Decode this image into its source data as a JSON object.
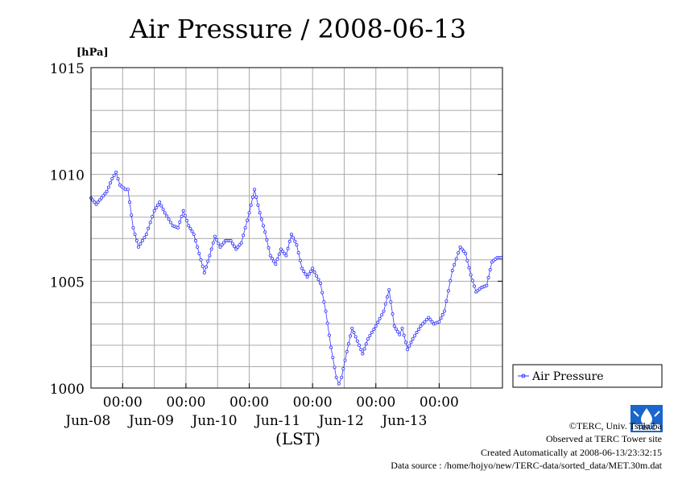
{
  "chart_data": {
    "type": "line",
    "title": "Air Pressure / 2008-06-13",
    "ylabel": "[hPa]",
    "xlabel": "(LST)",
    "ylim": [
      1000,
      1015
    ],
    "xlim": [
      "2008-06-07 12:00",
      "2008-06-13 24:00"
    ],
    "yticks": [
      1000,
      1005,
      1010,
      1015
    ],
    "grid": true,
    "legend_position": "right",
    "x_tick_labels": [
      {
        "time": "00:00",
        "day": "Jun-08"
      },
      {
        "time": "00:00",
        "day": "Jun-09"
      },
      {
        "time": "00:00",
        "day": "Jun-10"
      },
      {
        "time": "00:00",
        "day": "Jun-11"
      },
      {
        "time": "00:00",
        "day": "Jun-12"
      },
      {
        "time": "00:00",
        "day": "Jun-13"
      }
    ],
    "series": [
      {
        "name": "Air Pressure",
        "color": "#3333ff",
        "points": [
          [
            "2008-06-07 12:00",
            1008.9
          ],
          [
            "2008-06-07 14:00",
            1008.6
          ],
          [
            "2008-06-07 16:00",
            1008.9
          ],
          [
            "2008-06-07 18:00",
            1009.2
          ],
          [
            "2008-06-07 20:00",
            1009.8
          ],
          [
            "2008-06-07 21:30",
            1010.1
          ],
          [
            "2008-06-07 23:00",
            1009.5
          ],
          [
            "2008-06-08 01:00",
            1009.3
          ],
          [
            "2008-06-08 02:00",
            1009.3
          ],
          [
            "2008-06-08 04:00",
            1007.5
          ],
          [
            "2008-06-08 06:00",
            1006.6
          ],
          [
            "2008-06-08 09:00",
            1007.2
          ],
          [
            "2008-06-08 12:00",
            1008.3
          ],
          [
            "2008-06-08 14:00",
            1008.7
          ],
          [
            "2008-06-08 16:00",
            1008.2
          ],
          [
            "2008-06-08 19:00",
            1007.6
          ],
          [
            "2008-06-08 21:00",
            1007.5
          ],
          [
            "2008-06-08 23:00",
            1008.3
          ],
          [
            "2008-06-09 01:00",
            1007.6
          ],
          [
            "2008-06-09 03:00",
            1007.2
          ],
          [
            "2008-06-09 05:00",
            1006.3
          ],
          [
            "2008-06-09 07:00",
            1005.4
          ],
          [
            "2008-06-09 09:00",
            1006.2
          ],
          [
            "2008-06-09 11:00",
            1007.1
          ],
          [
            "2008-06-09 13:00",
            1006.6
          ],
          [
            "2008-06-09 15:00",
            1006.9
          ],
          [
            "2008-06-09 17:00",
            1006.9
          ],
          [
            "2008-06-09 19:00",
            1006.5
          ],
          [
            "2008-06-09 21:00",
            1006.8
          ],
          [
            "2008-06-10 00:00",
            1008.2
          ],
          [
            "2008-06-10 02:00",
            1009.3
          ],
          [
            "2008-06-10 04:00",
            1008.2
          ],
          [
            "2008-06-10 06:00",
            1007.3
          ],
          [
            "2008-06-10 08:00",
            1006.2
          ],
          [
            "2008-06-10 10:00",
            1005.8
          ],
          [
            "2008-06-10 12:00",
            1006.5
          ],
          [
            "2008-06-10 14:00",
            1006.2
          ],
          [
            "2008-06-10 16:00",
            1007.2
          ],
          [
            "2008-06-10 18:00",
            1006.7
          ],
          [
            "2008-06-10 20:00",
            1005.6
          ],
          [
            "2008-06-10 22:00",
            1005.2
          ],
          [
            "2008-06-11 00:00",
            1005.6
          ],
          [
            "2008-06-11 03:00",
            1004.9
          ],
          [
            "2008-06-11 05:00",
            1003.6
          ],
          [
            "2008-06-11 07:00",
            1001.9
          ],
          [
            "2008-06-11 09:00",
            1000.5
          ],
          [
            "2008-06-11 10:00",
            1000.2
          ],
          [
            "2008-06-11 11:00",
            1000.5
          ],
          [
            "2008-06-11 13:00",
            1001.7
          ],
          [
            "2008-06-11 15:00",
            1002.8
          ],
          [
            "2008-06-11 17:00",
            1002.2
          ],
          [
            "2008-06-11 19:00",
            1001.6
          ],
          [
            "2008-06-11 21:00",
            1002.3
          ],
          [
            "2008-06-12 00:00",
            1002.9
          ],
          [
            "2008-06-12 03:00",
            1003.6
          ],
          [
            "2008-06-12 05:00",
            1004.6
          ],
          [
            "2008-06-12 07:00",
            1002.9
          ],
          [
            "2008-06-12 09:00",
            1002.5
          ],
          [
            "2008-06-12 10:00",
            1002.8
          ],
          [
            "2008-06-12 12:00",
            1001.8
          ],
          [
            "2008-06-12 14:00",
            1002.3
          ],
          [
            "2008-06-12 17:00",
            1002.9
          ],
          [
            "2008-06-12 20:00",
            1003.3
          ],
          [
            "2008-06-12 22:00",
            1003.0
          ],
          [
            "2008-06-13 00:00",
            1003.1
          ],
          [
            "2008-06-13 02:00",
            1003.6
          ],
          [
            "2008-06-13 05:00",
            1005.5
          ],
          [
            "2008-06-13 08:00",
            1006.6
          ],
          [
            "2008-06-13 10:00",
            1006.3
          ],
          [
            "2008-06-13 12:00",
            1005.3
          ],
          [
            "2008-06-13 14:00",
            1004.5
          ],
          [
            "2008-06-13 16:00",
            1004.7
          ],
          [
            "2008-06-13 18:00",
            1004.8
          ],
          [
            "2008-06-13 20:00",
            1005.9
          ],
          [
            "2008-06-13 22:00",
            1006.1
          ],
          [
            "2008-06-13 23:30",
            1006.1
          ]
        ]
      }
    ]
  },
  "footer": {
    "copyright": "©TERC, Univ. Tsukuba",
    "observed": "Observed at TERC Tower site",
    "created": "Created Automatically at 2008-06-13/23:32:15",
    "source": "Data source : /home/hojyo/new/TERC-data/sorted_data/MET.30m.dat"
  },
  "logo": {
    "icon": "terc-logo-icon",
    "text": "TERC",
    "color": "#1a66cc"
  }
}
